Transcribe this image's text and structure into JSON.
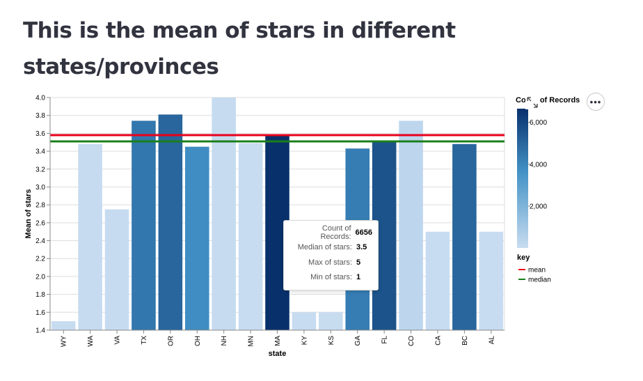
{
  "page": {
    "title": "This is the mean of stars in different states/provinces"
  },
  "chart_data": {
    "type": "bar",
    "title": "",
    "xlabel": "state",
    "ylabel": "Mean of stars",
    "ylim": [
      1.4,
      4.0
    ],
    "y_ticks": [
      "1.4",
      "1.6",
      "1.8",
      "2.0",
      "2.2",
      "2.4",
      "2.6",
      "2.8",
      "3.0",
      "3.2",
      "3.4",
      "3.6",
      "3.8",
      "4.0"
    ],
    "grid": true,
    "categories": [
      "WY",
      "WA",
      "VA",
      "TX",
      "OR",
      "OH",
      "NH",
      "MN",
      "MA",
      "KY",
      "KS",
      "GA",
      "FL",
      "CO",
      "CA",
      "BC",
      "AL"
    ],
    "values": [
      1.5,
      3.48,
      2.75,
      3.74,
      3.81,
      3.45,
      4.0,
      3.49,
      3.57,
      1.6,
      1.6,
      3.43,
      3.52,
      3.74,
      2.5,
      3.48,
      2.5
    ],
    "count_of_records": [
      5,
      50,
      30,
      4500,
      5000,
      3800,
      50,
      20,
      6656,
      15,
      10,
      4300,
      5600,
      300,
      25,
      5000,
      20
    ],
    "color_legend": {
      "title": "Count of Records",
      "ticks": [
        "2,000",
        "4,000",
        "6,000"
      ],
      "range": [
        1,
        6656
      ]
    },
    "reference_lines": {
      "title": "key",
      "items": [
        {
          "name": "mean",
          "value": 3.58,
          "color": "#e8001c"
        },
        {
          "name": "median",
          "value": 3.51,
          "color": "#1a7f1a"
        }
      ]
    }
  },
  "tooltip": {
    "rows": [
      {
        "key": "Count of Records:",
        "value": "6656"
      },
      {
        "key": "Median of stars:",
        "value": "3.5"
      },
      {
        "key": "Max of stars:",
        "value": "5"
      },
      {
        "key": "Min of stars:",
        "value": "1"
      }
    ]
  },
  "toolbar": {
    "expand_icon": "expand-icon",
    "more_icon": "more-options-icon",
    "more_glyph": "•••"
  }
}
